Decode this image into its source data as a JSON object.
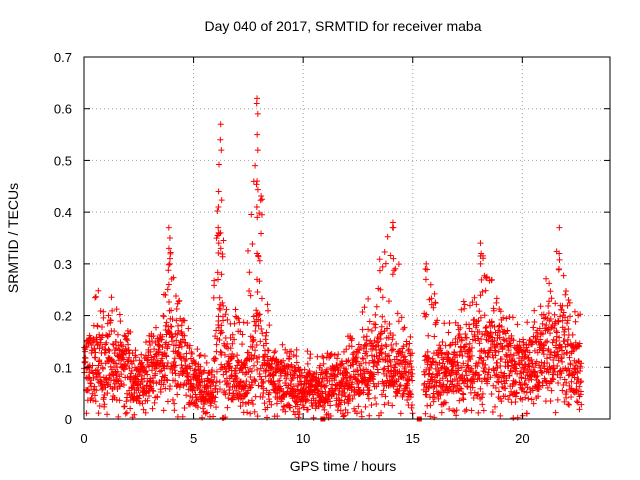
{
  "chart_data": {
    "type": "scatter",
    "title": "Day 040 of 2017, SRMTID for receiver maba",
    "xlabel": "GPS time / hours",
    "ylabel": "SRMTID / TECUs",
    "xlim": [
      0,
      24
    ],
    "ylim": [
      0,
      0.7
    ],
    "xticks": [
      0,
      5,
      10,
      15,
      20
    ],
    "xtick_labels": [
      "0",
      "5",
      "10",
      "15",
      "20"
    ],
    "yticks": [
      0,
      0.1,
      0.2,
      0.3,
      0.4,
      0.5,
      0.6,
      0.7
    ],
    "ytick_labels": [
      "0",
      "0.1",
      "0.2",
      "0.3",
      "0.4",
      "0.5",
      "0.6",
      "0.7"
    ],
    "grid": true,
    "marker": "+",
    "color": "#ff0000",
    "series": [
      {
        "name": "SRMTID",
        "data_gap_hours": [
          15.0,
          15.5
        ],
        "envelope": [
          {
            "x": 0.0,
            "base": 0.1,
            "max": 0.15
          },
          {
            "x": 0.6,
            "base": 0.12,
            "max": 0.25
          },
          {
            "x": 1.5,
            "base": 0.1,
            "max": 0.23
          },
          {
            "x": 2.5,
            "base": 0.08,
            "max": 0.14
          },
          {
            "x": 3.5,
            "base": 0.11,
            "max": 0.19
          },
          {
            "x": 3.9,
            "base": 0.14,
            "max": 0.37
          },
          {
            "x": 4.2,
            "base": 0.13,
            "max": 0.26
          },
          {
            "x": 5.0,
            "base": 0.08,
            "max": 0.14
          },
          {
            "x": 5.8,
            "base": 0.05,
            "max": 0.12
          },
          {
            "x": 6.1,
            "base": 0.15,
            "max": 0.44
          },
          {
            "x": 6.2,
            "base": 0.2,
            "max": 0.57
          },
          {
            "x": 6.6,
            "base": 0.09,
            "max": 0.2
          },
          {
            "x": 7.3,
            "base": 0.07,
            "max": 0.25
          },
          {
            "x": 7.9,
            "base": 0.15,
            "max": 0.62
          },
          {
            "x": 8.5,
            "base": 0.08,
            "max": 0.15
          },
          {
            "x": 9.5,
            "base": 0.07,
            "max": 0.14
          },
          {
            "x": 10.5,
            "base": 0.06,
            "max": 0.13
          },
          {
            "x": 11.5,
            "base": 0.07,
            "max": 0.13
          },
          {
            "x": 12.5,
            "base": 0.09,
            "max": 0.19
          },
          {
            "x": 13.5,
            "base": 0.13,
            "max": 0.32
          },
          {
            "x": 14.1,
            "base": 0.11,
            "max": 0.38
          },
          {
            "x": 14.9,
            "base": 0.08,
            "max": 0.16
          },
          {
            "x": 15.6,
            "base": 0.09,
            "max": 0.3
          },
          {
            "x": 16.5,
            "base": 0.09,
            "max": 0.18
          },
          {
            "x": 17.5,
            "base": 0.12,
            "max": 0.24
          },
          {
            "x": 18.1,
            "base": 0.14,
            "max": 0.34
          },
          {
            "x": 19.0,
            "base": 0.12,
            "max": 0.22
          },
          {
            "x": 20.0,
            "base": 0.09,
            "max": 0.18
          },
          {
            "x": 21.0,
            "base": 0.13,
            "max": 0.26
          },
          {
            "x": 21.7,
            "base": 0.16,
            "max": 0.37
          },
          {
            "x": 22.2,
            "base": 0.11,
            "max": 0.23
          },
          {
            "x": 22.7,
            "base": 0.09,
            "max": 0.2
          }
        ],
        "spikes": [
          {
            "x": 3.9,
            "values": [
              0.37,
              0.35,
              0.33,
              0.31,
              0.3,
              0.26
            ]
          },
          {
            "x": 6.15,
            "values": [
              0.44,
              0.41,
              0.37,
              0.36,
              0.34
            ]
          },
          {
            "x": 6.25,
            "values": [
              0.57,
              0.54,
              0.52,
              0.36,
              0.33,
              0.28
            ]
          },
          {
            "x": 7.9,
            "values": [
              0.62,
              0.61,
              0.59,
              0.55,
              0.52,
              0.46,
              0.41,
              0.39,
              0.32,
              0.27
            ]
          },
          {
            "x": 14.1,
            "values": [
              0.38,
              0.37,
              0.31,
              0.28
            ]
          },
          {
            "x": 15.6,
            "values": [
              0.3,
              0.29,
              0.27
            ]
          },
          {
            "x": 18.1,
            "values": [
              0.34,
              0.32,
              0.3
            ]
          },
          {
            "x": 21.7,
            "values": [
              0.37,
              0.32,
              0.29
            ]
          }
        ],
        "baseline_points": [
          {
            "x": 10.9,
            "y": 0.0
          },
          {
            "x": 15.3,
            "y": 0.0
          }
        ]
      }
    ]
  }
}
